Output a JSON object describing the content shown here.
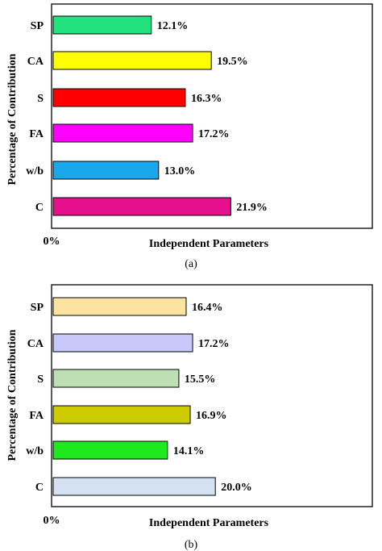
{
  "chart_data": [
    {
      "type": "bar",
      "orientation": "horizontal",
      "categories": [
        "SP",
        "CA",
        "S",
        "FA",
        "w/b",
        "C"
      ],
      "values": [
        12.1,
        19.5,
        16.3,
        17.2,
        13.0,
        21.9
      ],
      "value_labels": [
        "12.1%",
        "19.5%",
        "16.3%",
        "17.2%",
        "13.0%",
        "21.9%"
      ],
      "colors": [
        "#21e27f",
        "#ffff00",
        "#ff0000",
        "#ff00ff",
        "#1aa7ec",
        "#e6108c"
      ],
      "xlabel": "Independent Parameters",
      "ylabel": "Percentage of Contribution",
      "x_tick_label": "0%",
      "xlim": [
        0,
        28
      ],
      "grid": false,
      "caption": "(a)"
    },
    {
      "type": "bar",
      "orientation": "horizontal",
      "categories": [
        "SP",
        "CA",
        "S",
        "FA",
        "w/b",
        "C"
      ],
      "values": [
        16.4,
        17.2,
        15.5,
        16.9,
        14.1,
        20.0
      ],
      "value_labels": [
        "16.4%",
        "17.2%",
        "15.5%",
        "16.9%",
        "14.1%",
        "20.0%"
      ],
      "colors": [
        "#fce3a0",
        "#c8c8fa",
        "#bcdfb3",
        "#cccc00",
        "#1fe81f",
        "#d4e2f2"
      ],
      "xlabel": "Independent Parameters",
      "ylabel": "Percentage of Contribution",
      "x_tick_label": "0%",
      "xlim": [
        0,
        28
      ],
      "grid": false,
      "caption": "(b)"
    }
  ]
}
